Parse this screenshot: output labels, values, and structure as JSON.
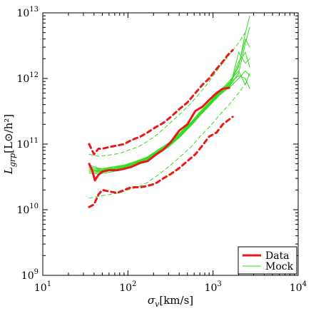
{
  "chart_data": {
    "type": "line",
    "xlabel": "σ_v[km/s]",
    "ylabel": "L_grp[L⊙/h²]",
    "xscale": "log",
    "yscale": "log",
    "xlim": [
      10,
      10000
    ],
    "ylim": [
      1000000000,
      10000000000000
    ],
    "grid": false,
    "legend_position": "bottom-right",
    "x_ticks": [
      {
        "value": 10,
        "base": "10",
        "exp": "1"
      },
      {
        "value": 100,
        "base": "10",
        "exp": "2"
      },
      {
        "value": 1000,
        "base": "10",
        "exp": "3"
      },
      {
        "value": 10000,
        "base": "10",
        "exp": "4"
      }
    ],
    "y_ticks": [
      {
        "value": 1000000000,
        "base": "10",
        "exp": "9"
      },
      {
        "value": 10000000000,
        "base": "10",
        "exp": "10"
      },
      {
        "value": 100000000000,
        "base": "10",
        "exp": "11"
      },
      {
        "value": 1000000000000,
        "base": "10",
        "exp": "12"
      },
      {
        "value": 10000000000000,
        "base": "10",
        "exp": "13"
      }
    ],
    "colors": {
      "data": "#e8191a",
      "mock": "#33dd22"
    },
    "legend": [
      {
        "label": "Data",
        "color": "#e8191a",
        "style": "thick-solid"
      },
      {
        "label": "Mock",
        "color": "#33dd22",
        "style": "thin-solid"
      }
    ],
    "series": [
      {
        "name": "Data",
        "role": "median",
        "x": [
          35,
          38,
          41,
          45,
          50,
          60,
          75,
          90,
          110,
          140,
          170,
          210,
          260,
          320,
          400,
          500,
          620,
          750,
          900,
          1100,
          1300,
          1550
        ],
        "y": [
          50000000000,
          40000000000,
          28000000000,
          34000000000,
          38000000000,
          40000000000,
          40000000000,
          42000000000,
          45000000000,
          52000000000,
          55000000000,
          68000000000,
          82000000000,
          108000000000,
          160000000000,
          200000000000,
          320000000000,
          370000000000,
          470000000000,
          600000000000,
          700000000000,
          720000000000
        ]
      },
      {
        "name": "Data upper bound",
        "role": "upper",
        "x": [
          35,
          40,
          45,
          50,
          60,
          75,
          90,
          110,
          140,
          170,
          210,
          260,
          320,
          400,
          500,
          620,
          750,
          900,
          1100,
          1300,
          1500,
          1700
        ],
        "y": [
          100000000000,
          70000000000,
          85000000000,
          85000000000,
          90000000000,
          95000000000,
          100000000000,
          115000000000,
          130000000000,
          150000000000,
          180000000000,
          210000000000,
          260000000000,
          340000000000,
          430000000000,
          600000000000,
          800000000000,
          1000000000000,
          1400000000000,
          1800000000000,
          2300000000000,
          2700000000000
        ]
      },
      {
        "name": "Data lower bound",
        "role": "lower",
        "x": [
          35,
          40,
          45,
          50,
          60,
          75,
          90,
          110,
          140,
          170,
          210,
          260,
          320,
          400,
          500,
          620,
          750,
          900,
          1100,
          1300,
          1500,
          1700
        ],
        "y": [
          11000000000,
          12000000000,
          17000000000,
          20000000000,
          19000000000,
          18000000000,
          20000000000,
          22000000000,
          22000000000,
          23000000000,
          25000000000,
          30000000000,
          35000000000,
          43000000000,
          55000000000,
          70000000000,
          95000000000,
          130000000000,
          150000000000,
          200000000000,
          230000000000,
          260000000000
        ]
      },
      {
        "name": "Mock upper bound",
        "role": "mock-upper",
        "x": [
          35,
          45,
          60,
          80,
          100,
          130,
          170,
          220,
          300,
          400,
          550,
          700,
          900,
          1200,
          1600,
          2000,
          2500
        ],
        "y": [
          70000000000,
          65000000000,
          68000000000,
          72000000000,
          80000000000,
          90000000000,
          110000000000,
          140000000000,
          200000000000,
          280000000000,
          420000000000,
          600000000000,
          900000000000,
          1500000000000,
          2400000000000,
          3500000000000,
          5500000000000
        ]
      },
      {
        "name": "Mock lower bound",
        "role": "mock-lower",
        "x": [
          35,
          45,
          60,
          80,
          100,
          130,
          170,
          220,
          300,
          400,
          550,
          700,
          900,
          1200,
          1600,
          2000,
          2500
        ],
        "y": [
          15000000000,
          16000000000,
          17000000000,
          18000000000,
          20000000000,
          22000000000,
          26000000000,
          33000000000,
          45000000000,
          62000000000,
          90000000000,
          130000000000,
          180000000000,
          280000000000,
          420000000000,
          600000000000,
          900000000000
        ]
      },
      {
        "name": "Mock 1",
        "role": "mock",
        "x": [
          35,
          45,
          60,
          80,
          100,
          130,
          170,
          220,
          300,
          400,
          550,
          700,
          900,
          1200,
          1600,
          2000,
          2400,
          2700
        ],
        "y": [
          40000000000,
          38000000000,
          40000000000,
          42000000000,
          45000000000,
          50000000000,
          60000000000,
          72000000000,
          95000000000,
          130000000000,
          200000000000,
          280000000000,
          400000000000,
          600000000000,
          800000000000,
          1200000000000,
          3500000000000,
          6000000000000
        ]
      },
      {
        "name": "Mock 2",
        "role": "mock",
        "x": [
          35,
          45,
          60,
          80,
          100,
          130,
          170,
          220,
          300,
          400,
          550,
          700,
          900,
          1200,
          1600,
          2000,
          2400,
          2700
        ],
        "y": [
          44000000000,
          42000000000,
          43000000000,
          45000000000,
          48000000000,
          55000000000,
          63000000000,
          78000000000,
          100000000000,
          140000000000,
          210000000000,
          300000000000,
          420000000000,
          620000000000,
          900000000000,
          1500000000000,
          5000000000000,
          9000000000000
        ]
      },
      {
        "name": "Mock 3",
        "role": "mock",
        "x": [
          35,
          45,
          60,
          80,
          100,
          130,
          170,
          220,
          300,
          400,
          550,
          700,
          900,
          1200,
          1600,
          2000,
          2400,
          2700
        ],
        "y": [
          36000000000,
          35000000000,
          37000000000,
          40000000000,
          43000000000,
          48000000000,
          57000000000,
          70000000000,
          90000000000,
          125000000000,
          190000000000,
          270000000000,
          380000000000,
          560000000000,
          750000000000,
          1000000000000,
          1300000000000,
          1100000000000
        ]
      },
      {
        "name": "Mock 4",
        "role": "mock",
        "x": [
          35,
          45,
          60,
          80,
          100,
          130,
          170,
          220,
          300,
          400,
          550,
          700,
          900,
          1200,
          1600,
          2000,
          2400,
          2700
        ],
        "y": [
          48000000000,
          43000000000,
          41000000000,
          44000000000,
          47000000000,
          53000000000,
          62000000000,
          75000000000,
          98000000000,
          135000000000,
          205000000000,
          290000000000,
          410000000000,
          610000000000,
          850000000000,
          1800000000000,
          2500000000000,
          1500000000000
        ]
      },
      {
        "name": "Mock 5",
        "role": "mock",
        "x": [
          35,
          45,
          60,
          80,
          100,
          130,
          170,
          220,
          300,
          400,
          550,
          700,
          900,
          1200,
          1600,
          2000,
          2400,
          2700
        ],
        "y": [
          42000000000,
          40000000000,
          42000000000,
          46000000000,
          50000000000,
          56000000000,
          64000000000,
          80000000000,
          104000000000,
          145000000000,
          215000000000,
          310000000000,
          430000000000,
          640000000000,
          950000000000,
          1300000000000,
          800000000000,
          1200000000000
        ]
      },
      {
        "name": "Mock 6",
        "role": "mock",
        "x": [
          35,
          45,
          60,
          80,
          100,
          130,
          170,
          220,
          300,
          400,
          550,
          700,
          900,
          1200,
          1600,
          2000,
          2400,
          2700
        ],
        "y": [
          38000000000,
          37000000000,
          39000000000,
          41000000000,
          44000000000,
          49000000000,
          58000000000,
          71000000000,
          93000000000,
          128000000000,
          195000000000,
          275000000000,
          390000000000,
          580000000000,
          780000000000,
          2500000000000,
          1700000000000,
          2000000000000
        ]
      },
      {
        "name": "Mock 7",
        "role": "mock",
        "x": [
          35,
          45,
          60,
          80,
          100,
          130,
          170,
          220,
          300,
          400,
          550,
          700,
          900,
          1200,
          1600,
          2000,
          2400,
          2700
        ],
        "y": [
          46000000000,
          41000000000,
          44000000000,
          47000000000,
          49000000000,
          54000000000,
          61000000000,
          76000000000,
          97000000000,
          138000000000,
          208000000000,
          295000000000,
          415000000000,
          630000000000,
          880000000000,
          1100000000000,
          1000000000000,
          700000000000
        ]
      },
      {
        "name": "Mock 8",
        "role": "mock",
        "x": [
          35,
          45,
          60,
          80,
          100,
          130,
          170,
          220,
          300,
          400,
          550,
          700,
          900,
          1200,
          1600,
          2000,
          2400,
          2700
        ],
        "y": [
          40000000000,
          39000000000,
          41000000000,
          43000000000,
          46000000000,
          52000000000,
          60000000000,
          74000000000,
          96000000000,
          132000000000,
          198000000000,
          285000000000,
          405000000000,
          590000000000,
          820000000000,
          1600000000000,
          4000000000000,
          3000000000000
        ]
      }
    ]
  }
}
